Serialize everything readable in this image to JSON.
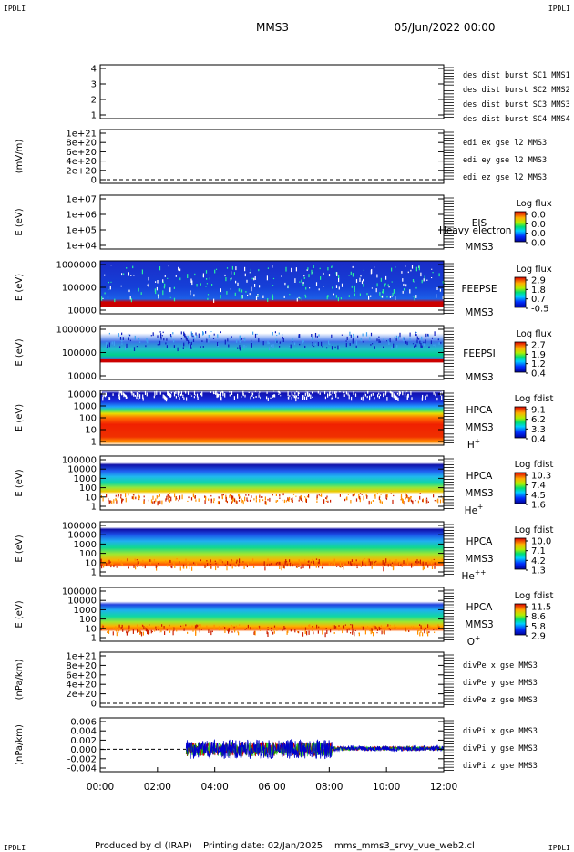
{
  "header": {
    "corner_tl": "IPDLI",
    "corner_tr": "IPDLI",
    "corner_bl": "IPDLI",
    "corner_br": "IPDLI",
    "title": "MMS3",
    "date": "05/Jun/2022 00:00"
  },
  "footer": {
    "produced_by": "Produced by cl (IRAP)",
    "printing_date": "Printing date: 02/Jan/2025",
    "filename": "mms_mms3_srvy_vue_web2.cl"
  },
  "time_axis": {
    "ticks": [
      "00:00",
      "02:00",
      "04:00",
      "06:00",
      "08:00",
      "10:00",
      "12:00"
    ],
    "range_hours": [
      0,
      12
    ]
  },
  "colors": {
    "blue": "#0000cc",
    "magenta": "#cc00cc",
    "red": "#cc0000",
    "green": "#00bb00"
  },
  "chart_data": [
    {
      "type": "line",
      "panel": "des-dist-burst",
      "ylabel": "",
      "yticks": [
        "4",
        "3",
        "2",
        "1"
      ],
      "ylim": [
        1,
        4
      ],
      "legend": [
        {
          "text": "des dist burst SC1 MMS1",
          "color": "#0000cc"
        },
        {
          "text": "des dist burst SC2 MMS2",
          "color": "#cc00cc"
        },
        {
          "text": "des dist burst SC3 MMS3",
          "color": "#cc0000"
        },
        {
          "text": "des dist burst SC4 MMS4",
          "color": "#00bb00"
        }
      ]
    },
    {
      "type": "line",
      "panel": "edi-e-gse",
      "ylabel": "(mV/m)",
      "yticks": [
        "1e+21",
        "8e+20",
        "6e+20",
        "4e+20",
        "2e+20",
        "0"
      ],
      "ylim": [
        0,
        1e+21
      ],
      "legend": [
        {
          "text": "edi ex gse l2 MMS3",
          "color": "#cc0000"
        },
        {
          "text": "edi ey gse l2 MMS3",
          "color": "#00bb00"
        },
        {
          "text": "edi ez gse l2 MMS3",
          "color": "#0000cc"
        }
      ]
    },
    {
      "type": "heatmap",
      "panel": "eis",
      "ylabel": "E (eV)",
      "yticks": [
        "1e+07",
        "1e+06",
        "1e+05",
        "1e+04"
      ],
      "instrument": [
        "EIS",
        "MMS3"
      ],
      "overlay_text": "Heavy electron to",
      "colorbar_title": "Log flux",
      "colorbar_ticks": [
        "0.0",
        "0.0",
        "0.0",
        "0.0"
      ]
    },
    {
      "type": "heatmap",
      "panel": "feepse",
      "ylabel": "E (eV)",
      "yticks": [
        "1000000",
        "100000",
        "10000"
      ],
      "instrument": [
        "FEEPSE",
        "MMS3"
      ],
      "colorbar_title": "Log flux",
      "colorbar_ticks": [
        "2.9",
        "1.8",
        "0.7",
        "-0.5"
      ]
    },
    {
      "type": "heatmap",
      "panel": "feepsi",
      "ylabel": "E (eV)",
      "yticks": [
        "1000000",
        "100000",
        "10000"
      ],
      "instrument": [
        "FEEPSI",
        "MMS3"
      ],
      "colorbar_title": "Log flux",
      "colorbar_ticks": [
        "2.7",
        "1.9",
        "1.2",
        "0.4"
      ]
    },
    {
      "type": "heatmap",
      "panel": "hpca-h",
      "ylabel": "E (eV)",
      "yticks": [
        "10000",
        "1000",
        "100",
        "10",
        "1"
      ],
      "instrument": [
        "HPCA",
        "MMS3"
      ],
      "species": "H",
      "species_sup": "+",
      "colorbar_title": "Log fdist",
      "colorbar_ticks": [
        "9.1",
        "6.2",
        "3.3",
        "0.4"
      ]
    },
    {
      "type": "heatmap",
      "panel": "hpca-he",
      "ylabel": "E (eV)",
      "yticks": [
        "100000",
        "10000",
        "1000",
        "100",
        "10",
        "1"
      ],
      "instrument": [
        "HPCA",
        "MMS3"
      ],
      "species": "He",
      "species_sup": "+",
      "colorbar_title": "Log fdist",
      "colorbar_ticks": [
        "10.3",
        "7.4",
        "4.5",
        "1.6"
      ]
    },
    {
      "type": "heatmap",
      "panel": "hpca-hepp",
      "ylabel": "E (eV)",
      "yticks": [
        "100000",
        "10000",
        "1000",
        "100",
        "10",
        "1"
      ],
      "instrument": [
        "HPCA",
        "MMS3"
      ],
      "species": "He",
      "species_sup": "++",
      "colorbar_title": "Log fdist",
      "colorbar_ticks": [
        "10.0",
        "7.1",
        "4.2",
        "1.3"
      ]
    },
    {
      "type": "heatmap",
      "panel": "hpca-o",
      "ylabel": "E (eV)",
      "yticks": [
        "100000",
        "10000",
        "1000",
        "100",
        "10",
        "1"
      ],
      "instrument": [
        "HPCA",
        "MMS3"
      ],
      "species": "O",
      "species_sup": "+",
      "colorbar_title": "Log fdist",
      "colorbar_ticks": [
        "11.5",
        "8.6",
        "5.8",
        "2.9"
      ]
    },
    {
      "type": "line",
      "panel": "divpe",
      "ylabel": "(nPa/km)",
      "yticks": [
        "1e+21",
        "8e+20",
        "6e+20",
        "4e+20",
        "2e+20",
        "0"
      ],
      "ylim": [
        0,
        1e+21
      ],
      "legend": [
        {
          "text": "divPe x gse MMS3",
          "color": "#cc0000"
        },
        {
          "text": "divPe y gse MMS3",
          "color": "#00bb00"
        },
        {
          "text": "divPe z gse MMS3",
          "color": "#0000cc"
        }
      ]
    },
    {
      "type": "line",
      "panel": "divpi",
      "ylabel": "(nPa/km)",
      "yticks": [
        "0.006",
        "0.004",
        "0.002",
        "0.000",
        "-0.002",
        "-0.004"
      ],
      "ylim": [
        -0.005,
        0.007
      ],
      "data_start_hour": 3.0,
      "legend": [
        {
          "text": "divPi x gse MMS3",
          "color": "#cc0000"
        },
        {
          "text": "divPi y gse MMS3",
          "color": "#00bb00"
        },
        {
          "text": "divPi z gse MMS3",
          "color": "#0000cc"
        }
      ]
    }
  ]
}
